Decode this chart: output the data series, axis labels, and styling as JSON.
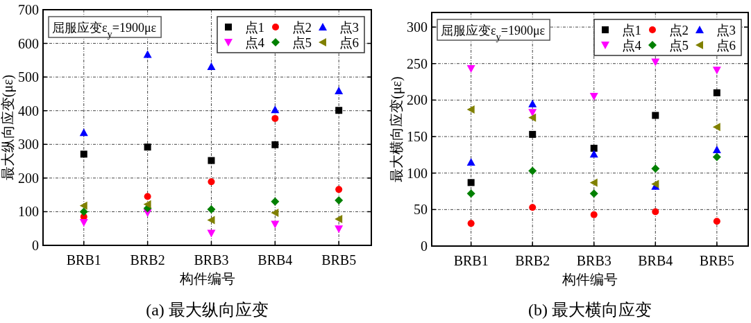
{
  "chart_data": [
    {
      "type": "scatter",
      "title": "(a)  最大纵向应变",
      "xlabel": "构件编号",
      "ylabel": "最大纵向应变(με)",
      "categories": [
        "BRB1",
        "BRB2",
        "BRB3",
        "BRB4",
        "BRB5"
      ],
      "ylim": [
        0,
        700
      ],
      "yticks": [
        0,
        100,
        200,
        300,
        400,
        500,
        600,
        700
      ],
      "grid": true,
      "legend": "top right",
      "annotations": [
        "屈服应变ε$_{y}$=1900με"
      ],
      "series": [
        {
          "name": "点1",
          "color": "#000000",
          "marker": "square",
          "values": [
            271,
            292,
            252,
            299,
            401
          ]
        },
        {
          "name": "点2",
          "color": "#ff0000",
          "marker": "circle",
          "values": [
            85,
            145,
            189,
            377,
            166
          ]
        },
        {
          "name": "点3",
          "color": "#0000ff",
          "marker": "triangle",
          "values": [
            335,
            567,
            531,
            403,
            459
          ]
        },
        {
          "name": "点4",
          "color": "#ff00ff",
          "marker": "triangle-down",
          "values": [
            68,
            97,
            36,
            63,
            49
          ]
        },
        {
          "name": "点5",
          "color": "#008000",
          "marker": "diamond",
          "values": [
            100,
            110,
            107,
            130,
            134
          ]
        },
        {
          "name": "点6",
          "color": "#808000",
          "marker": "triangle-left",
          "values": [
            118,
            122,
            75,
            97,
            78
          ]
        }
      ]
    },
    {
      "type": "scatter",
      "title": "(b)  最大横向应变",
      "xlabel": "构件编号",
      "ylabel": "最大横向应变(με)",
      "categories": [
        "BRB1",
        "BRB2",
        "BRB3",
        "BRB4",
        "BRB5"
      ],
      "ylim": [
        0,
        320
      ],
      "yticks": [
        0,
        50,
        100,
        150,
        200,
        250,
        300
      ],
      "grid": true,
      "legend": "top right",
      "annotations": [
        "屈服应变ε$_{y}$=1900με"
      ],
      "series": [
        {
          "name": "点1",
          "color": "#000000",
          "marker": "square",
          "values": [
            87,
            153,
            134,
            179,
            210
          ]
        },
        {
          "name": "点2",
          "color": "#ff0000",
          "marker": "circle",
          "values": [
            31,
            53,
            43,
            47,
            34
          ]
        },
        {
          "name": "点3",
          "color": "#0000ff",
          "marker": "triangle",
          "values": [
            115,
            195,
            126,
            82,
            132
          ]
        },
        {
          "name": "点4",
          "color": "#ff00ff",
          "marker": "triangle-down",
          "values": [
            243,
            183,
            205,
            252,
            241
          ]
        },
        {
          "name": "点5",
          "color": "#008000",
          "marker": "diamond",
          "values": [
            72,
            103,
            72,
            106,
            122
          ]
        },
        {
          "name": "点6",
          "color": "#808000",
          "marker": "triangle-left",
          "values": [
            187,
            176,
            87,
            85,
            163
          ]
        }
      ]
    }
  ]
}
